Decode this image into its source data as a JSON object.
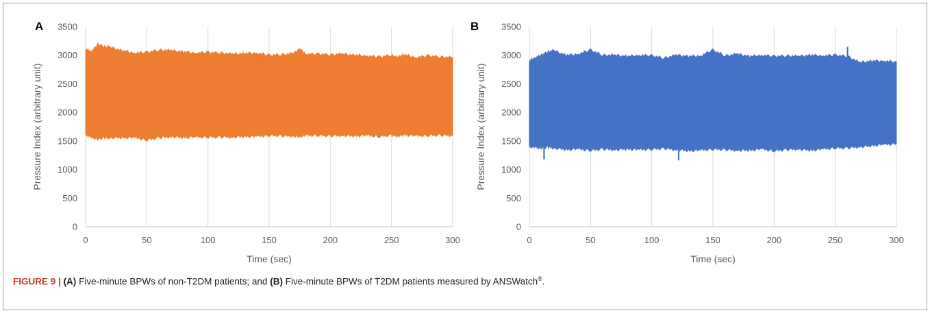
{
  "chart_data": [
    {
      "type": "area",
      "panel_label": "A",
      "color": "#ED7D31",
      "xlabel": "Time (sec)",
      "ylabel": "Pressure Index (arbitrary unit)",
      "xlim": [
        0,
        300
      ],
      "ylim": [
        0,
        3500
      ],
      "x_ticks": [
        0,
        50,
        100,
        150,
        200,
        250,
        300
      ],
      "y_ticks": [
        0,
        500,
        1000,
        1500,
        2000,
        2500,
        3000,
        3500
      ],
      "grid": "vertical",
      "series": [
        {
          "x": [
            0,
            5,
            10,
            15,
            20,
            30,
            40,
            50,
            60,
            70,
            80,
            90,
            100,
            110,
            120,
            130,
            140,
            150,
            160,
            170,
            175,
            180,
            190,
            200,
            210,
            220,
            230,
            240,
            250,
            255,
            260,
            270,
            280,
            290,
            300
          ],
          "upper": [
            3100,
            3070,
            3190,
            3150,
            3140,
            3080,
            3040,
            3050,
            3090,
            3080,
            3060,
            3040,
            3050,
            3040,
            3020,
            3030,
            3040,
            3000,
            3010,
            3030,
            3110,
            3020,
            3020,
            3010,
            3020,
            3000,
            2990,
            2970,
            3000,
            2960,
            3010,
            2960,
            2990,
            2970,
            2960
          ],
          "lower": [
            1610,
            1560,
            1540,
            1560,
            1560,
            1560,
            1560,
            1520,
            1560,
            1580,
            1560,
            1570,
            1570,
            1570,
            1570,
            1580,
            1580,
            1600,
            1590,
            1590,
            1580,
            1600,
            1600,
            1590,
            1600,
            1590,
            1600,
            1580,
            1600,
            1590,
            1610,
            1590,
            1600,
            1600,
            1600
          ]
        }
      ]
    },
    {
      "type": "area",
      "panel_label": "B",
      "color": "#4472C4",
      "xlabel": "Time (sec)",
      "ylabel": "Pressure Index (arbitrary unit)",
      "xlim": [
        0,
        300
      ],
      "ylim": [
        0,
        3500
      ],
      "x_ticks": [
        0,
        50,
        100,
        150,
        200,
        250,
        300
      ],
      "y_ticks": [
        0,
        500,
        1000,
        1500,
        2000,
        2500,
        3000,
        3500
      ],
      "grid": "vertical",
      "series": [
        {
          "x": [
            0,
            5,
            10,
            15,
            20,
            30,
            40,
            50,
            60,
            70,
            80,
            90,
            100,
            110,
            120,
            130,
            140,
            150,
            160,
            170,
            180,
            190,
            200,
            210,
            220,
            230,
            240,
            250,
            260,
            270,
            280,
            290,
            300
          ],
          "upper": [
            2900,
            2960,
            3000,
            3060,
            3080,
            3000,
            3020,
            3090,
            3000,
            3000,
            2980,
            3000,
            2990,
            2950,
            3000,
            2980,
            2990,
            3090,
            2990,
            3020,
            2980,
            3000,
            2980,
            2990,
            2980,
            3000,
            2990,
            3000,
            2980,
            2870,
            2900,
            2900,
            2880
          ],
          "lower": [
            1400,
            1390,
            1380,
            1400,
            1380,
            1350,
            1360,
            1340,
            1360,
            1350,
            1360,
            1350,
            1360,
            1370,
            1350,
            1330,
            1340,
            1360,
            1350,
            1340,
            1340,
            1360,
            1330,
            1350,
            1360,
            1340,
            1360,
            1380,
            1380,
            1400,
            1420,
            1440,
            1450
          ]
        }
      ],
      "spikes": [
        {
          "x": 12,
          "y": 1180
        },
        {
          "x": 122,
          "y": 1160
        },
        {
          "x": 260,
          "y": 3150
        },
        {
          "x": 278,
          "y": 1420
        }
      ]
    }
  ],
  "caption": {
    "label": "FIGURE 9 |",
    "a_ref": "(A)",
    "a_text": "Five-minute BPWs of non-T2DM patients; and",
    "b_ref": "(B)",
    "b_text": "Five-minute BPWs of T2DM patients measured by ANSWatch",
    "trademark": "®",
    "end": "."
  }
}
